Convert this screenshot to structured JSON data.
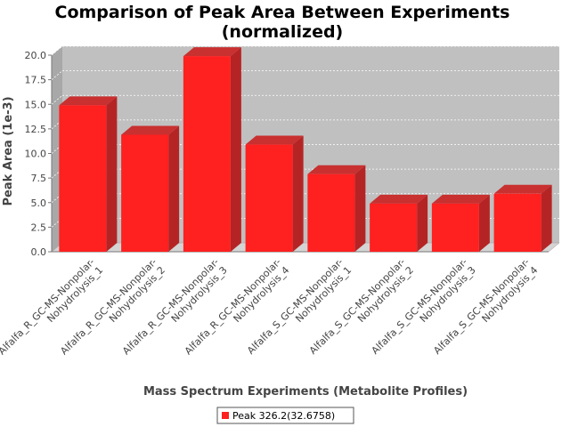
{
  "chart_data": {
    "type": "bar",
    "title_lines": [
      "Comparison of Peak Area Between Experiments",
      "(normalized)"
    ],
    "xlabel": "Mass Spectrum Experiments (Metabolite Profiles)",
    "ylabel": "Peak Area (1e-3)",
    "ylim": [
      0,
      20
    ],
    "yticks": [
      "0.0",
      "2.5",
      "5.0",
      "7.5",
      "10.0",
      "12.5",
      "15.0",
      "17.5",
      "20.0"
    ],
    "grid": true,
    "legend_position": "bottom",
    "categories": [
      [
        "Alfalfa_R_GC-MS-Nonpolar-",
        "Nohydrolysis_1"
      ],
      [
        "Alfalfa_R_GC-MS-Nonpolar-",
        "Nohydrolysis_2"
      ],
      [
        "Alfalfa_R_GC-MS-Nonpolar-",
        "Nohydrolysis_3"
      ],
      [
        "Alfalfa_R_GC-MS-Nonpolar-",
        "Nohydrolysis_4"
      ],
      [
        "Alfalfa_S_GC-MS-Nonpolar-",
        "Nohydrolysis_1"
      ],
      [
        "Alfalfa_S_GC-MS-Nonpolar-",
        "Nohydrolysis_2"
      ],
      [
        "Alfalfa_S_GC-MS-Nonpolar-",
        "Nohydrolysis_3"
      ],
      [
        "Alfalfa_S_GC-MS-Nonpolar-",
        "Nohydrolysis_4"
      ]
    ],
    "series": [
      {
        "name": "Peak 326.2(32.6758)",
        "color": "#ff2020",
        "values": [
          14.9,
          11.9,
          19.9,
          10.9,
          7.9,
          4.9,
          4.9,
          5.9
        ]
      }
    ]
  }
}
